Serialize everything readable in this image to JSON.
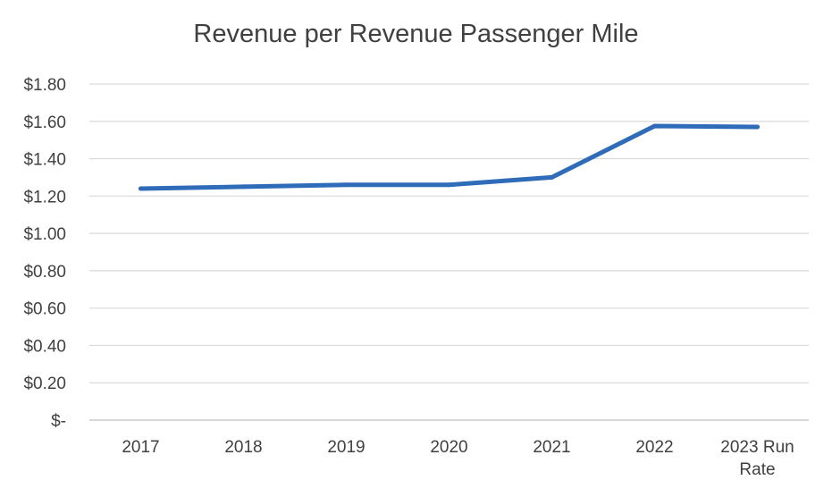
{
  "chart_data": {
    "type": "line",
    "title": "Revenue per Revenue Passenger Mile",
    "xlabel": "",
    "ylabel": "",
    "categories": [
      "2017",
      "2018",
      "2019",
      "2020",
      "2021",
      "2022",
      "2023 Run Rate"
    ],
    "series": [
      {
        "values": [
          1.24,
          1.25,
          1.26,
          1.26,
          1.3,
          1.575,
          1.57
        ],
        "color": "#2E6BB8"
      }
    ],
    "y_ticks": [
      "$-",
      "$0.20",
      "$0.40",
      "$0.60",
      "$0.80",
      "$1.00",
      "$1.20",
      "$1.40",
      "$1.60",
      "$1.80"
    ],
    "ylim": [
      0,
      1.8
    ],
    "grid": true,
    "legend": "none"
  }
}
